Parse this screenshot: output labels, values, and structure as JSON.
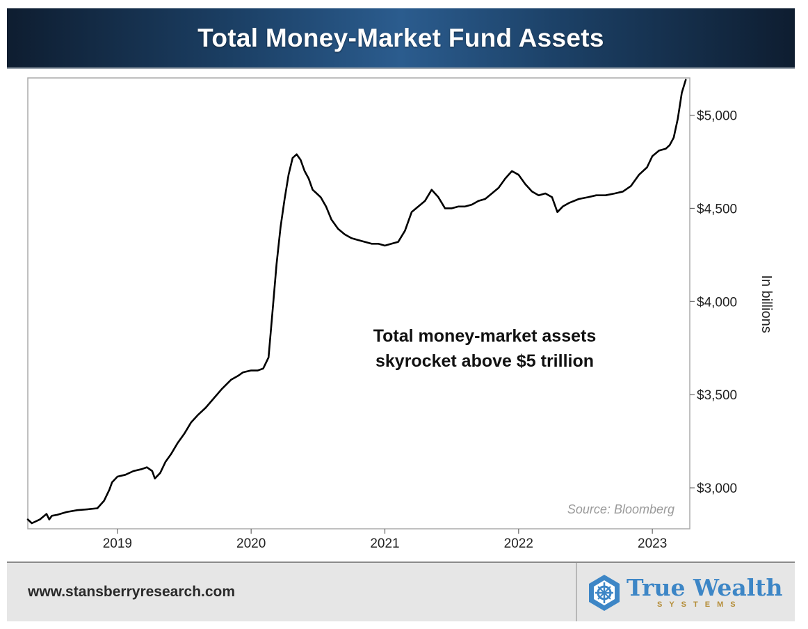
{
  "header": {
    "title": "Total Money-Market Fund Assets"
  },
  "footer": {
    "url": "www.stansberryresearch.com"
  },
  "logo": {
    "name": "True Wealth",
    "tagline": "SYSTEMS",
    "icon": "compass-hexagon-icon",
    "color": "#3d86c6",
    "tagline_color": "#b58e3a"
  },
  "chart_data": {
    "type": "line",
    "title": "Total Money-Market Fund Assets",
    "ylabel": "In billions",
    "xlabel": "",
    "annotation": [
      "Total money-market assets",
      "skyrocket above $5 trillion"
    ],
    "source": "Source: Bloomberg",
    "y_axis_position": "right",
    "ylim": [
      2780,
      5200
    ],
    "y_ticks": [
      3000,
      3500,
      4000,
      4500,
      5000
    ],
    "y_tick_labels": [
      "$3,000",
      "$3,500",
      "$4,000",
      "$4,500",
      "$5,000"
    ],
    "xlim": [
      2018.33,
      2023.28
    ],
    "x_ticks": [
      2019,
      2020,
      2021,
      2022,
      2023
    ],
    "x_tick_labels": [
      "2019",
      "2020",
      "2021",
      "2022",
      "2023"
    ],
    "grid": false,
    "series": [
      {
        "color": "#000000",
        "x": [
          2018.33,
          2018.36,
          2018.42,
          2018.47,
          2018.49,
          2018.51,
          2018.55,
          2018.62,
          2018.7,
          2018.78,
          2018.85,
          2018.9,
          2018.94,
          2018.96,
          2019.0,
          2019.06,
          2019.12,
          2019.18,
          2019.22,
          2019.26,
          2019.28,
          2019.32,
          2019.36,
          2019.4,
          2019.45,
          2019.5,
          2019.55,
          2019.6,
          2019.66,
          2019.72,
          2019.78,
          2019.85,
          2019.9,
          2019.94,
          2020.0,
          2020.05,
          2020.09,
          2020.13,
          2020.16,
          2020.19,
          2020.22,
          2020.25,
          2020.28,
          2020.31,
          2020.34,
          2020.37,
          2020.4,
          2020.43,
          2020.46,
          2020.49,
          2020.52,
          2020.56,
          2020.6,
          2020.65,
          2020.7,
          2020.75,
          2020.8,
          2020.85,
          2020.9,
          2020.95,
          2021.0,
          2021.05,
          2021.1,
          2021.15,
          2021.2,
          2021.25,
          2021.3,
          2021.35,
          2021.4,
          2021.45,
          2021.5,
          2021.55,
          2021.6,
          2021.65,
          2021.7,
          2021.75,
          2021.8,
          2021.85,
          2021.9,
          2021.95,
          2022.0,
          2022.05,
          2022.1,
          2022.15,
          2022.2,
          2022.25,
          2022.29,
          2022.33,
          2022.38,
          2022.45,
          2022.52,
          2022.58,
          2022.65,
          2022.72,
          2022.78,
          2022.84,
          2022.9,
          2022.96,
          2023.0,
          2023.05,
          2023.1,
          2023.13,
          2023.16,
          2023.19,
          2023.22,
          2023.25
        ],
        "values": [
          2830,
          2810,
          2830,
          2860,
          2830,
          2850,
          2855,
          2870,
          2880,
          2885,
          2890,
          2930,
          2990,
          3030,
          3060,
          3070,
          3090,
          3100,
          3110,
          3090,
          3050,
          3080,
          3140,
          3180,
          3240,
          3290,
          3350,
          3390,
          3430,
          3480,
          3530,
          3580,
          3600,
          3620,
          3630,
          3630,
          3640,
          3700,
          3950,
          4200,
          4400,
          4550,
          4680,
          4770,
          4790,
          4760,
          4700,
          4660,
          4600,
          4580,
          4560,
          4510,
          4440,
          4390,
          4360,
          4340,
          4330,
          4320,
          4310,
          4310,
          4300,
          4310,
          4320,
          4380,
          4480,
          4510,
          4540,
          4600,
          4560,
          4500,
          4500,
          4510,
          4510,
          4520,
          4540,
          4550,
          4580,
          4610,
          4660,
          4700,
          4680,
          4630,
          4590,
          4570,
          4580,
          4560,
          4480,
          4510,
          4530,
          4550,
          4560,
          4570,
          4570,
          4580,
          4590,
          4620,
          4680,
          4720,
          4780,
          4810,
          4820,
          4840,
          4880,
          4980,
          5120,
          5190
        ]
      }
    ]
  }
}
